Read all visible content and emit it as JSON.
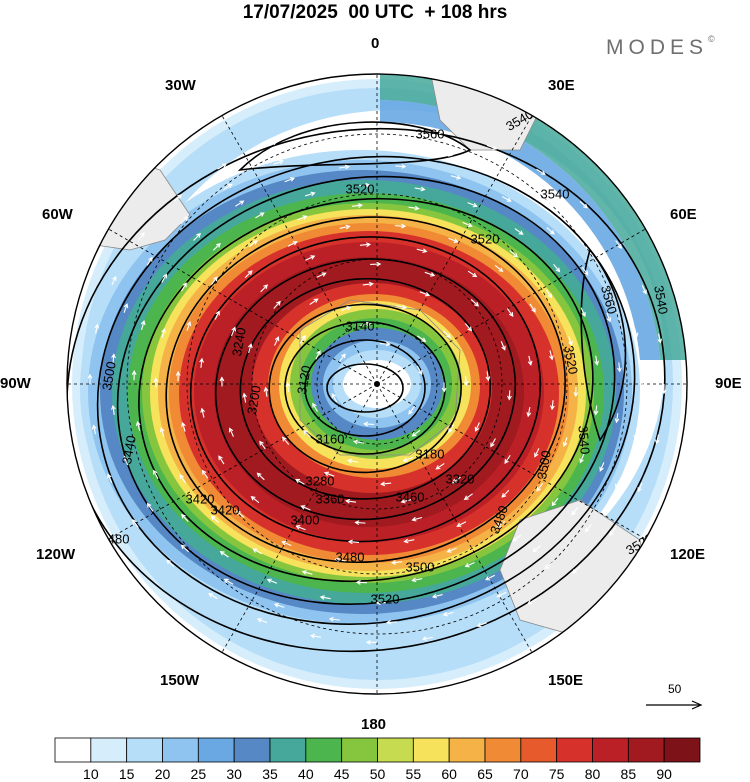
{
  "title": "17/07/2025  00 UTC  + 108 hrs",
  "brand": "MODES",
  "brand_mark": "©",
  "longitude_labels": {
    "lon_0": "0",
    "lon_30e": "30E",
    "lon_60e": "60E",
    "lon_90e": "90E",
    "lon_120e": "120E",
    "lon_150e": "150E",
    "lon_180": "180",
    "lon_150w": "150W",
    "lon_120w": "120W",
    "lon_90w": "90W",
    "lon_60w": "60W",
    "lon_30w": "30W"
  },
  "wind_reference": {
    "value": "50"
  },
  "colorbar": {
    "ticks": [
      "10",
      "15",
      "20",
      "25",
      "30",
      "35",
      "40",
      "45",
      "50",
      "55",
      "60",
      "65",
      "70",
      "75",
      "80",
      "85",
      "90"
    ],
    "colors": [
      "#ffffff",
      "#d6eefc",
      "#b6def8",
      "#8ec4ef",
      "#69a8e2",
      "#5588c4",
      "#45a89a",
      "#4cb54e",
      "#86c63f",
      "#c6db4f",
      "#f6e25b",
      "#f5b347",
      "#f08a35",
      "#e75a2b",
      "#d7312b",
      "#bb2026",
      "#a01a1f",
      "#7d1218"
    ]
  },
  "contour_labels": [
    "3540",
    "3560",
    "3540",
    "3520",
    "3560",
    "3540",
    "3520",
    "3500",
    "3540",
    "3520",
    "3520",
    "3500",
    "3480",
    "3480",
    "3500",
    "3420",
    "3400",
    "3480",
    "3520",
    "3140",
    "3160",
    "3180",
    "3120",
    "3200",
    "3280",
    "3360",
    "3420",
    "3440",
    "3460",
    "3320",
    "3240"
  ]
}
